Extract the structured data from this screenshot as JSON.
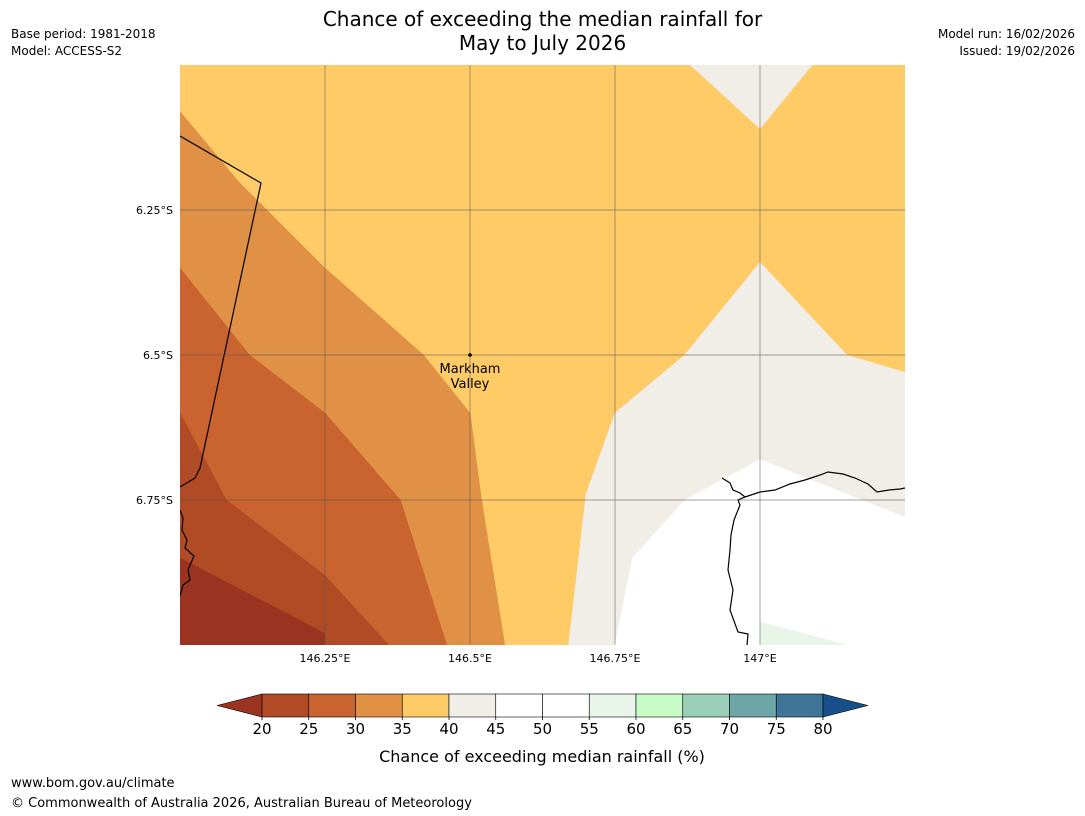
{
  "header": {
    "title_line1": "Chance of exceeding the median rainfall for",
    "title_line2": "May to July 2026",
    "base_period": "Base period: 1981-2018",
    "model": "Model: ACCESS-S2",
    "model_run": "Model run: 16/02/2026",
    "issued": "Issued: 19/02/2026"
  },
  "chart_data": {
    "type": "heatmap",
    "title": "Chance of exceeding the median rainfall for May to July 2026",
    "x_range": [
      146.0,
      147.25
    ],
    "y_range": [
      -7.0,
      -6.0
    ],
    "x_ticks": [
      {
        "value": 146.25,
        "label": "146.25°E"
      },
      {
        "value": 146.5,
        "label": "146.5°E"
      },
      {
        "value": 146.75,
        "label": "146.75°E"
      },
      {
        "value": 147.0,
        "label": "147°E"
      }
    ],
    "y_ticks": [
      {
        "value": -6.25,
        "label": "6.25°S"
      },
      {
        "value": -6.5,
        "label": "6.5°S"
      },
      {
        "value": -6.75,
        "label": "6.75°S"
      }
    ],
    "grid": true,
    "location": {
      "name_line1": "Markham",
      "name_line2": "Valley",
      "lon": 146.5,
      "lat": -6.5
    },
    "colorbar": {
      "label": "Chance of exceeding median rainfall (%)",
      "ticks": [
        "20",
        "25",
        "30",
        "35",
        "40",
        "45",
        "50",
        "55",
        "60",
        "65",
        "70",
        "75",
        "80"
      ],
      "under_color": "#9b3321",
      "over_color": "#164f8a",
      "bins": [
        {
          "range": [
            20,
            25
          ],
          "color": "#b04b25"
        },
        {
          "range": [
            25,
            30
          ],
          "color": "#c9632f"
        },
        {
          "range": [
            30,
            35
          ],
          "color": "#e09145"
        },
        {
          "range": [
            35,
            40
          ],
          "color": "#fecb66"
        },
        {
          "range": [
            40,
            45
          ],
          "color": "#f1ede7"
        },
        {
          "range": [
            45,
            50
          ],
          "color": "#ffffff"
        },
        {
          "range": [
            50,
            55
          ],
          "color": "#ffffff"
        },
        {
          "range": [
            55,
            60
          ],
          "color": "#e8f5e8"
        },
        {
          "range": [
            60,
            65
          ],
          "color": "#c7fbc7"
        },
        {
          "range": [
            65,
            70
          ],
          "color": "#9bcfb8"
        },
        {
          "range": [
            70,
            75
          ],
          "color": "#6ea5a6"
        },
        {
          "range": [
            75,
            80
          ],
          "color": "#417598"
        }
      ]
    },
    "regions": [
      {
        "range": [
          35,
          40
        ],
        "color": "#fecb66",
        "points": [
          [
            146.0,
            -6.0
          ],
          [
            147.25,
            -6.0
          ],
          [
            147.25,
            -7.0
          ],
          [
            146.0,
            -7.0
          ]
        ]
      },
      {
        "range": [
          40,
          45
        ],
        "color": "#f1ede7",
        "points": [
          [
            146.88,
            -6.0
          ],
          [
            147.09,
            -6.0
          ],
          [
            147.0,
            -6.11
          ],
          [
            146.88,
            -6.0
          ]
        ]
      },
      {
        "range": [
          40,
          45
        ],
        "color": "#f1ede7",
        "points": [
          [
            147.25,
            -6.53
          ],
          [
            147.15,
            -6.5
          ],
          [
            147.0,
            -6.34
          ],
          [
            146.87,
            -6.5
          ],
          [
            146.75,
            -6.6
          ],
          [
            146.7,
            -6.74
          ],
          [
            146.67,
            -7.0
          ],
          [
            147.25,
            -7.0
          ]
        ]
      },
      {
        "range": [
          30,
          35
        ],
        "color": "#e09145",
        "points": [
          [
            146.0,
            -6.08
          ],
          [
            146.1,
            -6.2
          ],
          [
            146.25,
            -6.35
          ],
          [
            146.42,
            -6.5
          ],
          [
            146.5,
            -6.6
          ],
          [
            146.52,
            -6.75
          ],
          [
            146.56,
            -7.0
          ],
          [
            146.0,
            -7.0
          ]
        ]
      },
      {
        "range": [
          25,
          30
        ],
        "color": "#c9632f",
        "points": [
          [
            146.0,
            -6.35
          ],
          [
            146.12,
            -6.5
          ],
          [
            146.25,
            -6.6
          ],
          [
            146.38,
            -6.75
          ],
          [
            146.46,
            -7.0
          ],
          [
            146.0,
            -7.0
          ]
        ]
      },
      {
        "range": [
          20,
          25
        ],
        "color": "#b04b25",
        "points": [
          [
            146.0,
            -6.6
          ],
          [
            146.08,
            -6.75
          ],
          [
            146.25,
            -6.88
          ],
          [
            146.36,
            -7.0
          ],
          [
            146.0,
            -7.0
          ]
        ]
      },
      {
        "range": [
          15,
          20
        ],
        "color": "#9b3321",
        "points": [
          [
            146.0,
            -6.85
          ],
          [
            146.25,
            -6.98
          ],
          [
            146.25,
            -7.0
          ],
          [
            146.0,
            -7.0
          ]
        ]
      },
      {
        "range": [
          45,
          55
        ],
        "color": "#ffffff",
        "points": [
          [
            147.25,
            -6.78
          ],
          [
            147.0,
            -6.68
          ],
          [
            146.87,
            -6.75
          ],
          [
            146.78,
            -6.85
          ],
          [
            146.75,
            -7.0
          ],
          [
            147.25,
            -7.0
          ]
        ]
      },
      {
        "range": [
          55,
          60
        ],
        "color": "#e8f5e8",
        "points": [
          [
            147.0,
            -6.96
          ],
          [
            147.15,
            -7.0
          ],
          [
            147.0,
            -7.0
          ]
        ]
      }
    ]
  },
  "footer": {
    "url": "www.bom.gov.au/climate",
    "copyright": "© Commonwealth of Australia 2026, Australian Bureau of Meteorology"
  }
}
